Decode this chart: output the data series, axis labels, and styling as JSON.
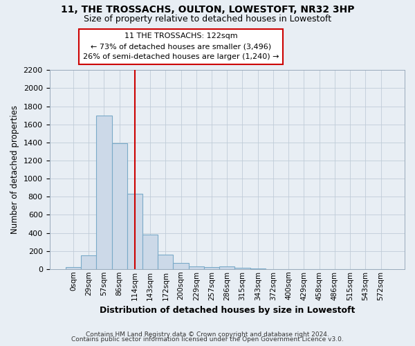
{
  "title1": "11, THE TROSSACHS, OULTON, LOWESTOFT, NR32 3HP",
  "title2": "Size of property relative to detached houses in Lowestoft",
  "xlabel": "Distribution of detached houses by size in Lowestoft",
  "ylabel": "Number of detached properties",
  "bar_labels": [
    "0sqm",
    "29sqm",
    "57sqm",
    "86sqm",
    "114sqm",
    "143sqm",
    "172sqm",
    "200sqm",
    "229sqm",
    "257sqm",
    "286sqm",
    "315sqm",
    "343sqm",
    "372sqm",
    "400sqm",
    "429sqm",
    "458sqm",
    "486sqm",
    "515sqm",
    "543sqm",
    "572sqm"
  ],
  "bar_values": [
    20,
    155,
    1700,
    1390,
    830,
    380,
    160,
    65,
    30,
    20,
    30,
    10,
    5,
    0,
    0,
    0,
    0,
    0,
    0,
    0,
    0
  ],
  "bar_color": "#ccd9e8",
  "bar_edgecolor": "#7aaac8",
  "ylim": [
    0,
    2200
  ],
  "yticks": [
    0,
    200,
    400,
    600,
    800,
    1000,
    1200,
    1400,
    1600,
    1800,
    2000,
    2200
  ],
  "vline_x": 4.0,
  "vline_color": "#cc0000",
  "annotation_line1": "11 THE TROSSACHS: 122sqm",
  "annotation_line2": "← 73% of detached houses are smaller (3,496)",
  "annotation_line3": "26% of semi-detached houses are larger (1,240) →",
  "footer1": "Contains HM Land Registry data © Crown copyright and database right 2024.",
  "footer2": "Contains public sector information licensed under the Open Government Licence v3.0.",
  "bg_color": "#e8eef4",
  "plot_bg_color": "#e8eef4",
  "grid_color": "#c0ccd8"
}
